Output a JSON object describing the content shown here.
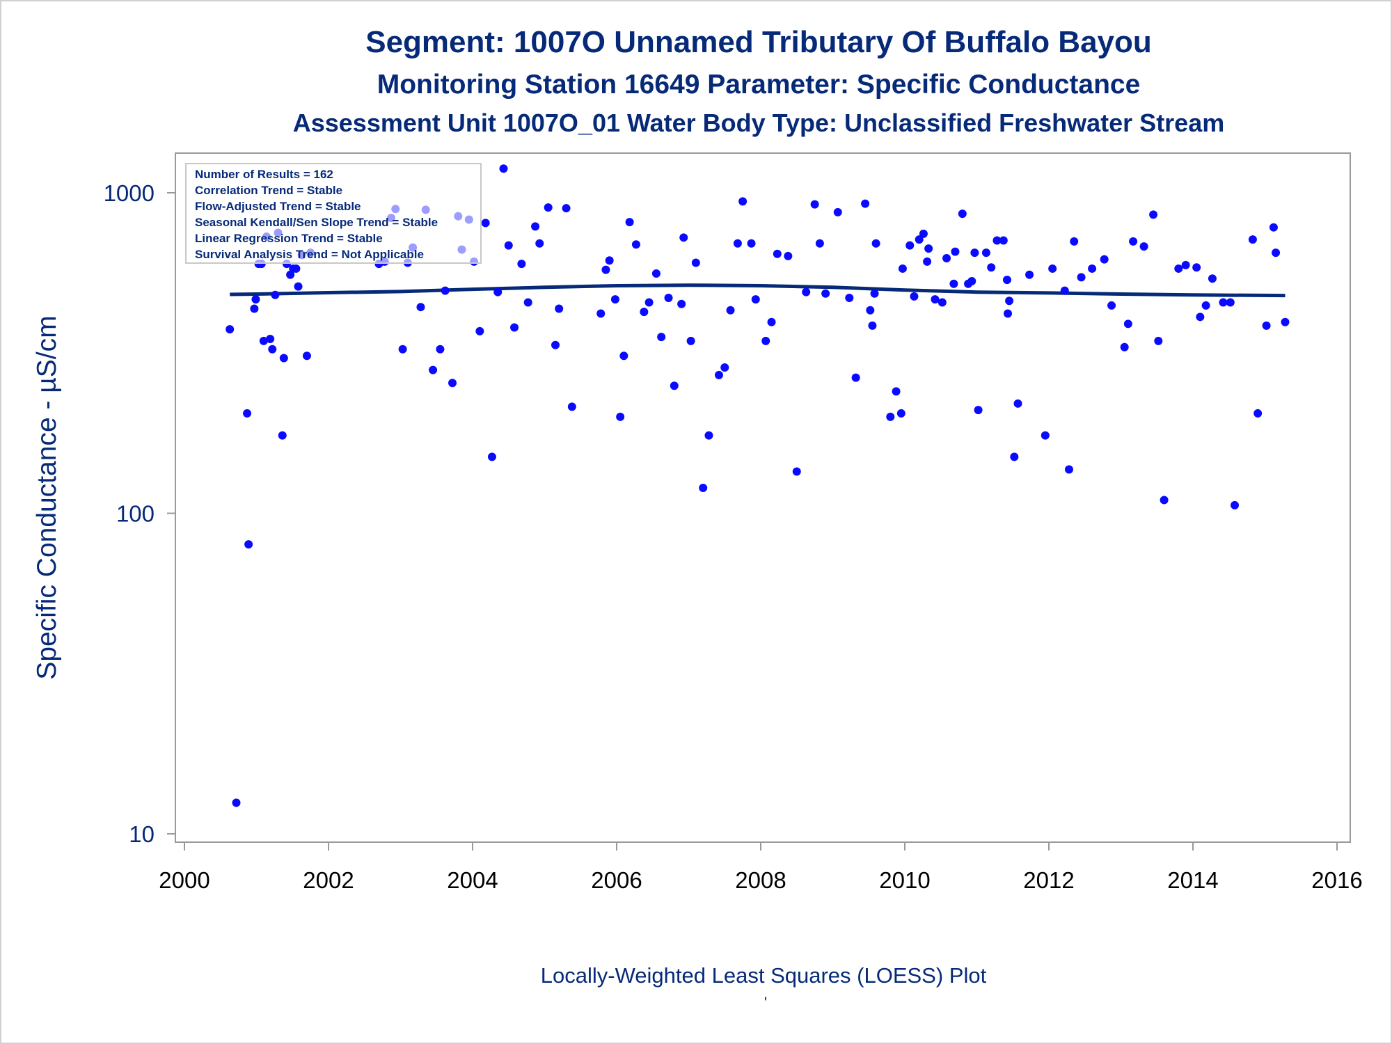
{
  "header": {
    "title": "Segment: 1007O  Unnamed Tributary Of Buffalo Bayou",
    "subtitle": "Monitoring Station 16649 Parameter: Specific Conductance",
    "subtitle2": "Assessment Unit 1007O_01   Water Body Type: Unclassified Freshwater Stream"
  },
  "legend": {
    "lines": [
      "Number of Results = 162",
      "Correlation Trend = Stable",
      "Flow-Adjusted Trend = Stable",
      "Seasonal Kendall/Sen Slope Trend = Stable",
      "Linear Regression Trend = Stable",
      "Survival Analysis Trend = Not Applicable"
    ]
  },
  "footer": {
    "caption": "Locally-Weighted Least Squares (LOESS) Plot",
    "mark": "'"
  },
  "colors": {
    "points": "#0a0aff",
    "loess": "#062a78",
    "text": "#062a78",
    "axis": "#999999"
  },
  "chart_data": {
    "type": "scatter",
    "ylabel": "Specific Conductance -  µS/cm",
    "xlim": [
      2000,
      2016
    ],
    "ylim": [
      10,
      1000
    ],
    "yscale": "log",
    "xticks": [
      2000,
      2002,
      2004,
      2006,
      2008,
      2010,
      2012,
      2014,
      2016
    ],
    "yticks": [
      10,
      100,
      1000
    ],
    "grid": false,
    "legend_position": "top-left",
    "series": [
      {
        "type": "scatter",
        "x": [
          2000.63,
          2000.72,
          2000.87,
          2000.89,
          2000.97,
          2000.99,
          2001.03,
          2001.07,
          2001.1,
          2001.14,
          2001.19,
          2001.22,
          2001.26,
          2001.3,
          2001.36,
          2001.38,
          2001.42,
          2001.47,
          2001.51,
          2001.55,
          2001.58,
          2001.63,
          2001.7,
          2001.75,
          2002.7,
          2002.78,
          2002.87,
          2002.93,
          2003.03,
          2003.1,
          2003.17,
          2003.28,
          2003.35,
          2003.45,
          2003.55,
          2003.62,
          2003.72,
          2003.8,
          2003.85,
          2003.95,
          2004.02,
          2004.1,
          2004.18,
          2004.27,
          2004.35,
          2004.43,
          2004.5,
          2004.58,
          2004.68,
          2004.77,
          2004.87,
          2004.93,
          2005.05,
          2005.15,
          2005.2,
          2005.3,
          2005.38,
          2005.78,
          2005.85,
          2005.9,
          2005.98,
          2006.05,
          2006.1,
          2006.18,
          2006.27,
          2006.38,
          2006.45,
          2006.55,
          2006.62,
          2006.72,
          2006.8,
          2006.9,
          2006.93,
          2007.03,
          2007.1,
          2007.2,
          2007.28,
          2007.42,
          2007.5,
          2007.58,
          2007.68,
          2007.75,
          2007.87,
          2007.93,
          2008.07,
          2008.15,
          2008.23,
          2008.38,
          2008.5,
          2008.63,
          2008.75,
          2008.82,
          2008.9,
          2009.07,
          2009.23,
          2009.32,
          2009.45,
          2009.52,
          2009.55,
          2009.58,
          2009.6,
          2009.8,
          2009.88,
          2009.95,
          2009.97,
          2010.07,
          2010.13,
          2010.2,
          2010.26,
          2010.31,
          2010.33,
          2010.42,
          2010.52,
          2010.58,
          2010.68,
          2010.7,
          2010.8,
          2010.88,
          2010.93,
          2010.97,
          2011.02,
          2011.13,
          2011.2,
          2011.28,
          2011.37,
          2011.42,
          2011.43,
          2011.45,
          2011.52,
          2011.57,
          2011.73,
          2011.95,
          2012.05,
          2012.22,
          2012.28,
          2012.35,
          2012.45,
          2012.6,
          2012.77,
          2012.87,
          2013.05,
          2013.1,
          2013.17,
          2013.32,
          2013.45,
          2013.52,
          2013.6,
          2013.8,
          2013.9,
          2014.05,
          2014.1,
          2014.18,
          2014.27,
          2014.42,
          2014.52,
          2014.58,
          2014.83,
          2014.9,
          2015.02,
          2015.12,
          2015.15,
          2015.28
        ],
        "y": [
          375,
          12.5,
          205,
          80,
          435,
          465,
          600,
          600,
          345,
          730,
          350,
          325,
          480,
          750,
          175,
          305,
          600,
          555,
          580,
          580,
          510,
          640,
          310,
          650,
          600,
          610,
          835,
          890,
          325,
          605,
          675,
          440,
          885,
          280,
          325,
          495,
          255,
          845,
          665,
          825,
          610,
          370,
          805,
          150,
          490,
          1190,
          685,
          380,
          600,
          455,
          785,
          695,
          900,
          335,
          435,
          895,
          215,
          420,
          575,
          615,
          465,
          200,
          310,
          810,
          690,
          425,
          455,
          560,
          355,
          470,
          250,
          450,
          725,
          345,
          605,
          120,
          175,
          270,
          285,
          430,
          695,
          940,
          695,
          465,
          345,
          395,
          645,
          635,
          135,
          490,
          920,
          695,
          485,
          870,
          470,
          265,
          925,
          430,
          385,
          485,
          695,
          200,
          240,
          205,
          580,
          685,
          475,
          715,
          745,
          610,
          670,
          465,
          455,
          625,
          520,
          655,
          860,
          520,
          530,
          650,
          210,
          650,
          585,
          710,
          710,
          535,
          420,
          460,
          150,
          220,
          555,
          175,
          580,
          495,
          137,
          705,
          545,
          580,
          620,
          445,
          330,
          390,
          705,
          680,
          855,
          345,
          110,
          580,
          595,
          585,
          410,
          445,
          540,
          455,
          455,
          106,
          715,
          205,
          385,
          780,
          650,
          395
        ]
      },
      {
        "type": "line",
        "name": "LOESS",
        "x": [
          2000.63,
          2001.0,
          2002.0,
          2003.0,
          2004.0,
          2005.0,
          2006.0,
          2007.0,
          2008.0,
          2009.0,
          2010.0,
          2011.0,
          2012.0,
          2013.0,
          2014.0,
          2015.28
        ],
        "y": [
          482,
          483,
          488,
          492,
          500,
          507,
          513,
          515,
          513,
          507,
          497,
          490,
          487,
          483,
          480,
          478
        ]
      }
    ]
  }
}
